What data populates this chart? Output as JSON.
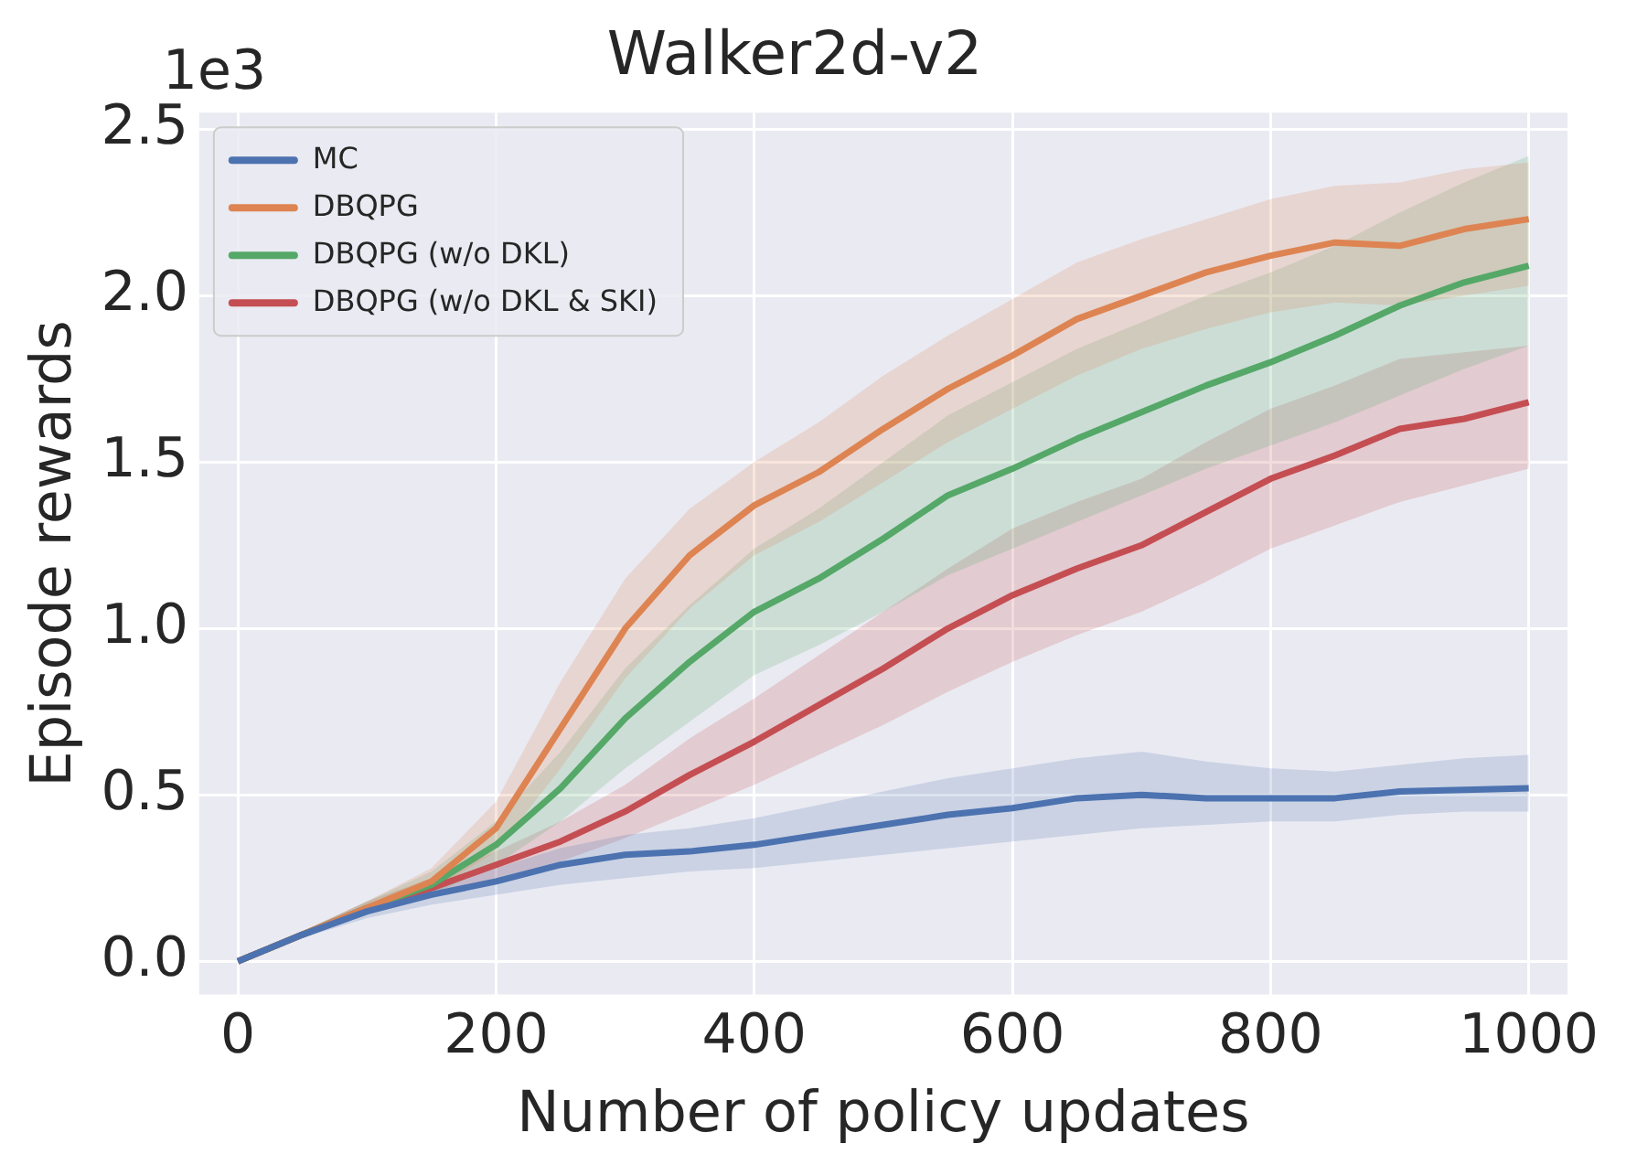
{
  "chart_data": {
    "type": "line",
    "title": "Walker2d-v2",
    "xlabel": "Number of policy updates",
    "ylabel": "Episode rewards",
    "annotations": [
      "1e3"
    ],
    "x": [
      0,
      50,
      100,
      150,
      200,
      250,
      300,
      350,
      400,
      450,
      500,
      550,
      600,
      650,
      700,
      750,
      800,
      850,
      900,
      950,
      1000
    ],
    "series": [
      {
        "name": "MC",
        "color": "#4c72b0",
        "values": [
          0,
          0.08,
          0.15,
          0.2,
          0.24,
          0.29,
          0.32,
          0.33,
          0.35,
          0.38,
          0.41,
          0.44,
          0.46,
          0.49,
          0.5,
          0.49,
          0.49,
          0.49,
          0.51,
          0.515,
          0.52
        ],
        "lower": [
          0,
          0.07,
          0.13,
          0.17,
          0.2,
          0.23,
          0.25,
          0.27,
          0.28,
          0.3,
          0.32,
          0.34,
          0.36,
          0.38,
          0.4,
          0.41,
          0.42,
          0.42,
          0.44,
          0.45,
          0.45
        ],
        "upper": [
          0,
          0.09,
          0.17,
          0.23,
          0.28,
          0.34,
          0.38,
          0.4,
          0.43,
          0.47,
          0.51,
          0.55,
          0.58,
          0.61,
          0.63,
          0.6,
          0.58,
          0.57,
          0.59,
          0.61,
          0.62
        ]
      },
      {
        "name": "DBQPG",
        "color": "#dd8452",
        "values": [
          0,
          0.08,
          0.16,
          0.24,
          0.4,
          0.7,
          1.0,
          1.22,
          1.37,
          1.47,
          1.6,
          1.72,
          1.82,
          1.93,
          2.0,
          2.07,
          2.12,
          2.16,
          2.15,
          2.2,
          2.23
        ],
        "lower": [
          0,
          0.07,
          0.14,
          0.21,
          0.33,
          0.58,
          0.85,
          1.06,
          1.22,
          1.32,
          1.44,
          1.56,
          1.66,
          1.76,
          1.84,
          1.9,
          1.95,
          1.98,
          1.97,
          2.0,
          2.03
        ],
        "upper": [
          0,
          0.09,
          0.18,
          0.28,
          0.48,
          0.84,
          1.15,
          1.36,
          1.5,
          1.62,
          1.76,
          1.88,
          1.99,
          2.1,
          2.17,
          2.23,
          2.29,
          2.33,
          2.34,
          2.38,
          2.4
        ]
      },
      {
        "name": "DBQPG (w/o DKL)",
        "color": "#55a868",
        "values": [
          0,
          0.08,
          0.16,
          0.23,
          0.35,
          0.52,
          0.73,
          0.9,
          1.05,
          1.15,
          1.27,
          1.4,
          1.48,
          1.57,
          1.65,
          1.73,
          1.8,
          1.88,
          1.97,
          2.04,
          2.09
        ],
        "lower": [
          0,
          0.07,
          0.14,
          0.2,
          0.29,
          0.42,
          0.58,
          0.72,
          0.86,
          0.95,
          1.05,
          1.16,
          1.24,
          1.32,
          1.4,
          1.48,
          1.55,
          1.62,
          1.7,
          1.78,
          1.85
        ],
        "upper": [
          0,
          0.09,
          0.18,
          0.27,
          0.42,
          0.63,
          0.88,
          1.07,
          1.24,
          1.36,
          1.5,
          1.64,
          1.74,
          1.84,
          1.92,
          2.0,
          2.07,
          2.15,
          2.25,
          2.34,
          2.42
        ]
      },
      {
        "name": "DBQPG (w/o DKL & SKI)",
        "color": "#c44e52",
        "values": [
          0,
          0.08,
          0.16,
          0.22,
          0.29,
          0.36,
          0.45,
          0.56,
          0.66,
          0.77,
          0.88,
          1.0,
          1.1,
          1.18,
          1.25,
          1.35,
          1.45,
          1.52,
          1.6,
          1.63,
          1.68
        ],
        "lower": [
          0,
          0.07,
          0.14,
          0.19,
          0.25,
          0.3,
          0.37,
          0.45,
          0.53,
          0.62,
          0.71,
          0.81,
          0.9,
          0.98,
          1.05,
          1.14,
          1.24,
          1.31,
          1.38,
          1.43,
          1.48
        ],
        "upper": [
          0,
          0.09,
          0.18,
          0.25,
          0.33,
          0.42,
          0.53,
          0.67,
          0.79,
          0.92,
          1.05,
          1.18,
          1.3,
          1.38,
          1.45,
          1.56,
          1.66,
          1.73,
          1.81,
          1.83,
          1.85
        ]
      }
    ],
    "xlim": [
      -30,
      1030
    ],
    "xticks": [
      0,
      200,
      400,
      600,
      800,
      1000
    ],
    "ylim": [
      -0.1,
      2.55
    ],
    "yticks": [
      {
        "value": 0,
        "label": "0.0"
      },
      0.5,
      {
        "value": 1,
        "label": "1.0"
      },
      1.5,
      {
        "value": 2,
        "label": "2.0"
      },
      2.5
    ],
    "grid": true,
    "legend": "top left",
    "marker": "none",
    "line_style": "solid"
  }
}
